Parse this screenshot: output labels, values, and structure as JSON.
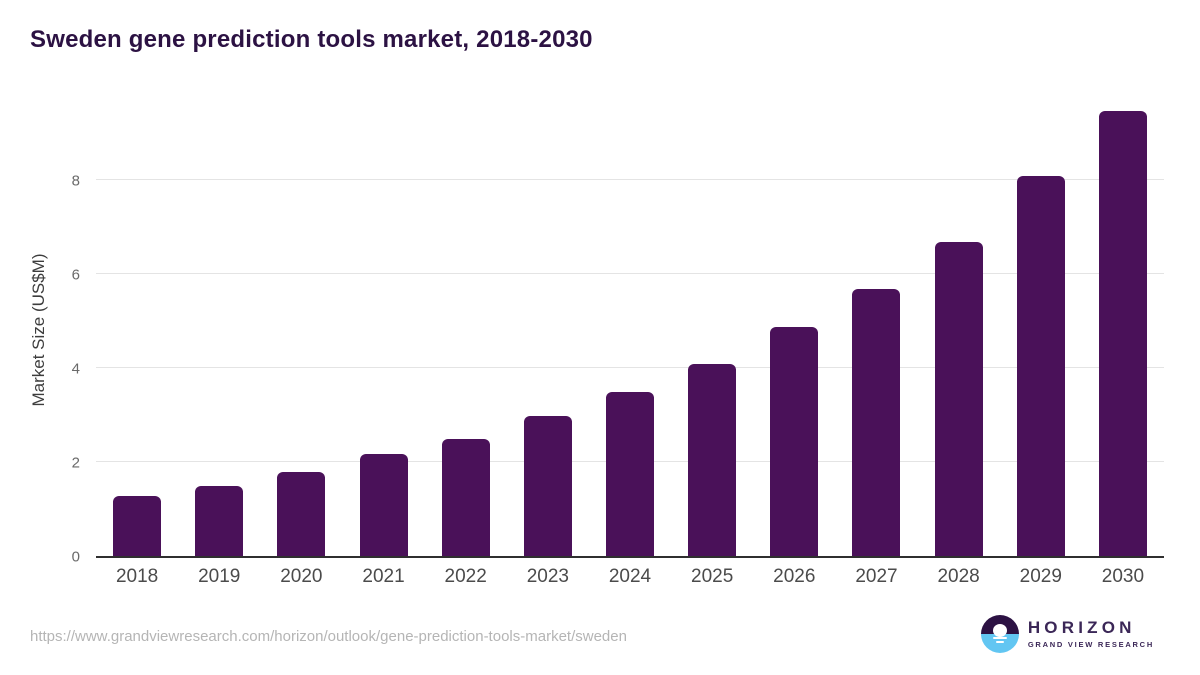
{
  "header": {
    "title": "Sweden gene prediction tools market, 2018-2030"
  },
  "chart_data": {
    "type": "bar",
    "title": "Sweden gene prediction tools market, 2018-2030",
    "categories": [
      "2018",
      "2019",
      "2020",
      "2021",
      "2022",
      "2023",
      "2024",
      "2025",
      "2026",
      "2027",
      "2028",
      "2029",
      "2030"
    ],
    "values": [
      1.28,
      1.48,
      1.79,
      2.16,
      2.49,
      2.97,
      3.48,
      4.09,
      4.87,
      5.68,
      6.67,
      8.08,
      9.47
    ],
    "xlabel": "",
    "ylabel": "Market Size (US$M)",
    "ylim": [
      0,
      9.7
    ],
    "yticks": [
      0,
      2,
      4,
      6,
      8
    ],
    "grid": "horizontal-only",
    "legend": "none",
    "bar_color": "#4a1159",
    "gridline_color": "#e4e4e4",
    "axis_line_color": "#2f2f2f"
  },
  "footer": {
    "source_url": "https://www.grandviewresearch.com/horizon/outlook/gene-prediction-tools-market/sweden",
    "logo": {
      "brand": "HORIZON",
      "sub_brand": "GRAND VIEW RESEARCH",
      "brand_color": "#3b2757",
      "icon_top_color": "#2c1243",
      "icon_bottom_color": "#62c6f2"
    }
  },
  "colors": {
    "title": "#2c1243",
    "x_label": "#4b4b4b",
    "y_tick": "#6a6a6a",
    "url_text": "#b5b5b5",
    "background": "#ffffff"
  }
}
